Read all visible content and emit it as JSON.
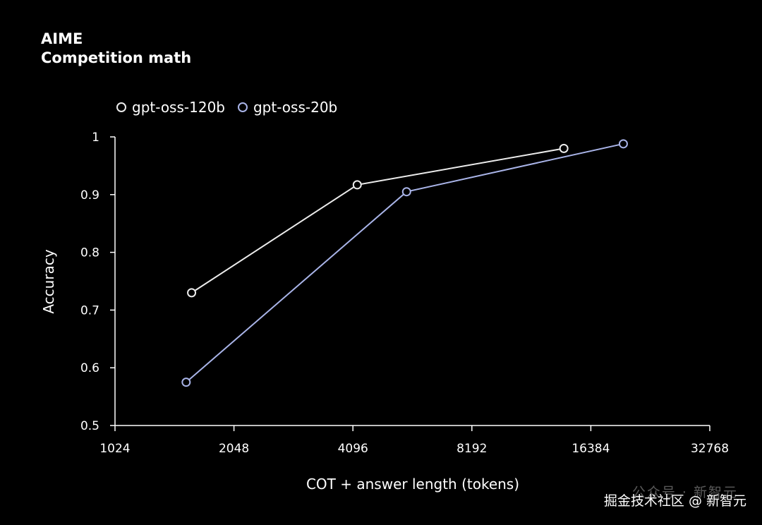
{
  "chart_data": {
    "type": "line",
    "title": "AIME",
    "subtitle": "Competition math",
    "xlabel": "COT + answer length (tokens)",
    "ylabel": "Accuracy",
    "x_scale": "log2",
    "x_ticks": [
      1024,
      2048,
      4096,
      8192,
      16384,
      32768
    ],
    "x_tick_labels": [
      "1024",
      "2048",
      "4096",
      "8192",
      "16384",
      "32768"
    ],
    "y_ticks": [
      0.5,
      0.6,
      0.7,
      0.8,
      0.9,
      1
    ],
    "y_tick_labels": [
      "0.5",
      "0.6",
      "0.7",
      "0.8",
      "0.9",
      "1"
    ],
    "xlim": [
      1024,
      32768
    ],
    "ylim": [
      0.5,
      1
    ],
    "grid": false,
    "legend_position": "top-left",
    "series": [
      {
        "name": "gpt-oss-120b",
        "color": "#ececec",
        "points": [
          {
            "x": 1600,
            "y": 0.73
          },
          {
            "x": 4200,
            "y": 0.917
          },
          {
            "x": 14000,
            "y": 0.98
          }
        ]
      },
      {
        "name": "gpt-oss-20b",
        "color": "#a9b4e8",
        "points": [
          {
            "x": 1550,
            "y": 0.575
          },
          {
            "x": 5600,
            "y": 0.905
          },
          {
            "x": 19800,
            "y": 0.988
          }
        ]
      }
    ]
  },
  "watermark": {
    "ghost": "公众号 · 新智元",
    "text": "掘金技术社区 @ 新智元"
  }
}
